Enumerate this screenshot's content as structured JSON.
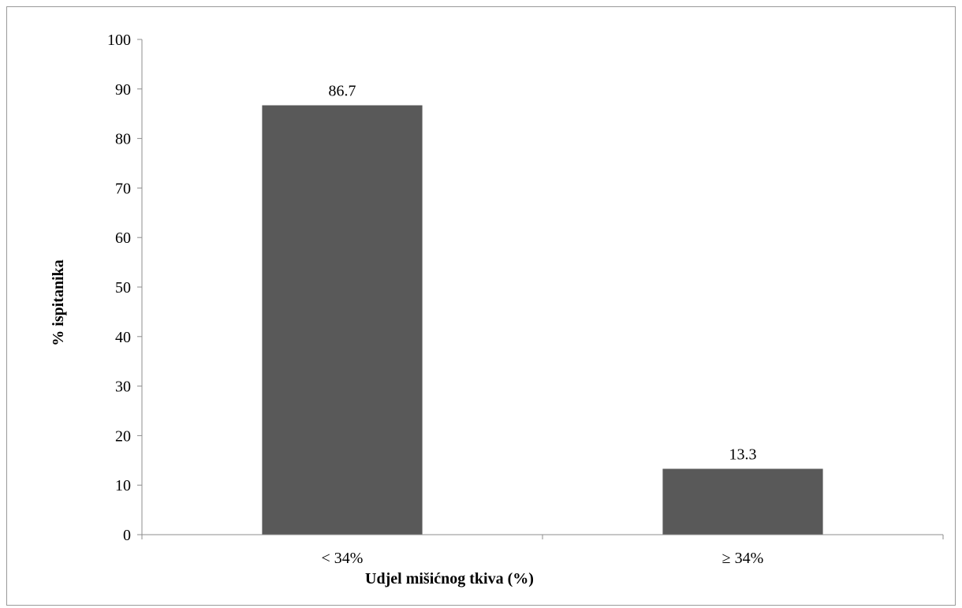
{
  "chart_data": {
    "type": "bar",
    "categories": [
      "< 34%",
      "≥ 34%"
    ],
    "values": [
      86.7,
      13.3
    ],
    "data_labels": [
      "86.7",
      "13.3"
    ],
    "title": "",
    "xlabel": "Udjel mišićnog tkiva (%)",
    "ylabel": "% ispitanika",
    "ylim": [
      0,
      100
    ],
    "yticks": [
      0,
      10,
      20,
      30,
      40,
      50,
      60,
      70,
      80,
      90,
      100
    ],
    "ytick_labels": [
      "0",
      "10",
      "20",
      "30",
      "40",
      "50",
      "60",
      "70",
      "80",
      "90",
      "100"
    ],
    "grid": false,
    "legend": "none",
    "bar_color": "#595959"
  }
}
